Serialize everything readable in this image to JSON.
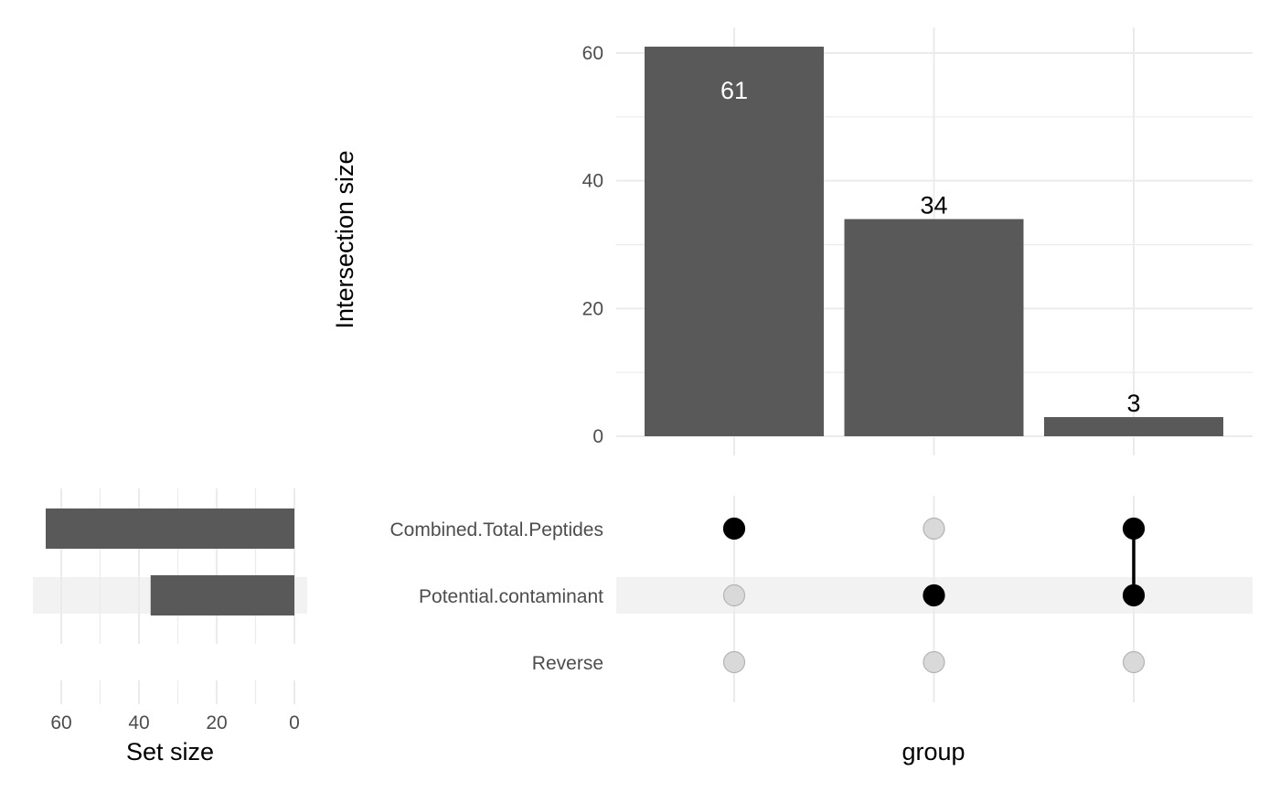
{
  "chart_data": {
    "type": "bar",
    "subtype": "upset",
    "title": "",
    "intersections": {
      "xlabel": "group",
      "ylabel": "Intersection size",
      "ylim": [
        0,
        64
      ],
      "yticks": [
        0,
        20,
        40,
        60
      ],
      "grid": true,
      "bars": [
        {
          "value": 61,
          "label": "61",
          "label_inside": true,
          "sets": [
            "Combined.Total.Peptides"
          ]
        },
        {
          "value": 34,
          "label": "34",
          "label_inside": false,
          "sets": [
            "Potential.contaminant"
          ]
        },
        {
          "value": 3,
          "label": "3",
          "label_inside": false,
          "sets": [
            "Combined.Total.Peptides",
            "Potential.contaminant"
          ]
        }
      ]
    },
    "sets": {
      "names": [
        "Combined.Total.Peptides",
        "Potential.contaminant",
        "Reverse"
      ],
      "sizes": [
        64,
        37,
        0
      ],
      "xlabel": "Set size",
      "xticks": [
        60,
        40,
        20,
        0
      ],
      "reversed_axis": true,
      "highlighted_rows": [
        "Potential.contaminant"
      ]
    },
    "colors": {
      "bar": "#595959",
      "dot_active": "#000000",
      "dot_inactive": "#d9d9d9",
      "dot_inactive_stroke": "#b3b3b3",
      "row_highlight": "#f2f2f2",
      "grid": "#ebebeb",
      "label_inside": "#ffffff",
      "label_outside": "#000000"
    }
  }
}
